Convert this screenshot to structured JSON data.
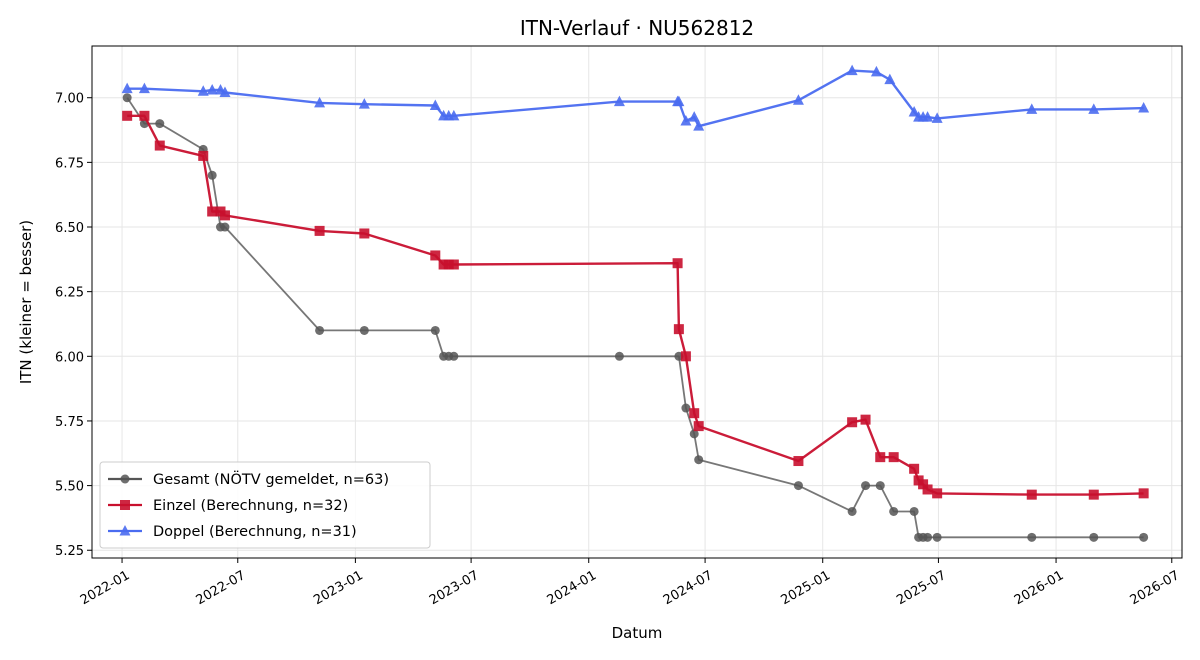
{
  "chart_data": {
    "type": "line",
    "title": "ITN-Verlauf · NU562812",
    "xlabel": "Datum",
    "ylabel": "ITN  (kleiner = besser)",
    "x_type": "date",
    "xlim": [
      "2021-11-15",
      "2026-07-17"
    ],
    "ylim": [
      5.22,
      7.2
    ],
    "y_ticks": [
      5.25,
      5.5,
      5.75,
      6.0,
      6.25,
      6.5,
      6.75,
      7.0
    ],
    "y_tick_labels": [
      "5.25",
      "5.50",
      "5.75",
      "6.00",
      "6.25",
      "6.50",
      "6.75",
      "7.00"
    ],
    "x_ticks": [
      "2022-01-01",
      "2022-07-01",
      "2023-01-01",
      "2023-07-01",
      "2024-01-01",
      "2024-07-01",
      "2025-01-01",
      "2025-07-01",
      "2026-01-01",
      "2026-07-01"
    ],
    "x_tick_labels": [
      "2022-01",
      "2022-07",
      "2023-01",
      "2023-07",
      "2024-01",
      "2024-07",
      "2025-01",
      "2025-07",
      "2026-01",
      "2026-07"
    ],
    "grid": true,
    "legend_position": "lower-left",
    "series": [
      {
        "name": "Gesamt (NÖTV gemeldet, n=63)",
        "color": "#555555",
        "marker": "circle",
        "points": [
          [
            "2022-01-09",
            7.0
          ],
          [
            "2022-02-05",
            6.9
          ],
          [
            "2022-03-01",
            6.9
          ],
          [
            "2022-05-08",
            6.8
          ],
          [
            "2022-05-22",
            6.7
          ],
          [
            "2022-06-04",
            6.5
          ],
          [
            "2022-06-11",
            6.5
          ],
          [
            "2022-11-06",
            6.1
          ],
          [
            "2023-01-15",
            6.1
          ],
          [
            "2023-05-06",
            6.1
          ],
          [
            "2023-05-19",
            6.0
          ],
          [
            "2023-05-27",
            6.0
          ],
          [
            "2023-06-04",
            6.0
          ],
          [
            "2024-02-18",
            6.0
          ],
          [
            "2024-05-21",
            6.0
          ],
          [
            "2024-06-01",
            5.8
          ],
          [
            "2024-06-14",
            5.7
          ],
          [
            "2024-06-21",
            5.6
          ],
          [
            "2024-11-24",
            5.5
          ],
          [
            "2025-02-16",
            5.4
          ],
          [
            "2025-03-09",
            5.5
          ],
          [
            "2025-04-01",
            5.5
          ],
          [
            "2025-04-22",
            5.4
          ],
          [
            "2025-05-24",
            5.4
          ],
          [
            "2025-05-31",
            5.3
          ],
          [
            "2025-06-07",
            5.3
          ],
          [
            "2025-06-14",
            5.3
          ],
          [
            "2025-06-29",
            5.3
          ],
          [
            "2025-11-24",
            5.3
          ],
          [
            "2026-03-01",
            5.3
          ],
          [
            "2026-05-18",
            5.3
          ]
        ]
      },
      {
        "name": "Einzel (Berechnung, n=32)",
        "color": "#C8102E",
        "marker": "square",
        "points": [
          [
            "2022-01-09",
            6.93
          ],
          [
            "2022-02-05",
            6.93
          ],
          [
            "2022-03-01",
            6.815
          ],
          [
            "2022-05-08",
            6.775
          ],
          [
            "2022-05-22",
            6.56
          ],
          [
            "2022-06-04",
            6.56
          ],
          [
            "2022-06-11",
            6.545
          ],
          [
            "2022-11-06",
            6.485
          ],
          [
            "2023-01-15",
            6.475
          ],
          [
            "2023-05-06",
            6.39
          ],
          [
            "2023-05-19",
            6.355
          ],
          [
            "2023-05-27",
            6.355
          ],
          [
            "2023-06-04",
            6.355
          ],
          [
            "2024-05-19",
            6.36
          ],
          [
            "2024-05-21",
            6.105
          ],
          [
            "2024-06-01",
            6.0
          ],
          [
            "2024-06-14",
            5.78
          ],
          [
            "2024-06-21",
            5.73
          ],
          [
            "2024-11-24",
            5.595
          ],
          [
            "2025-02-16",
            5.745
          ],
          [
            "2025-03-09",
            5.755
          ],
          [
            "2025-04-01",
            5.61
          ],
          [
            "2025-04-22",
            5.61
          ],
          [
            "2025-05-24",
            5.565
          ],
          [
            "2025-05-31",
            5.52
          ],
          [
            "2025-06-07",
            5.505
          ],
          [
            "2025-06-14",
            5.485
          ],
          [
            "2025-06-29",
            5.47
          ],
          [
            "2025-11-24",
            5.465
          ],
          [
            "2026-03-01",
            5.465
          ],
          [
            "2026-05-18",
            5.47
          ]
        ]
      },
      {
        "name": "Doppel (Berechnung, n=31)",
        "color": "#4A6CF0",
        "marker": "triangle",
        "points": [
          [
            "2022-01-09",
            7.035
          ],
          [
            "2022-02-05",
            7.035
          ],
          [
            "2022-05-08",
            7.025
          ],
          [
            "2022-05-22",
            7.03
          ],
          [
            "2022-06-04",
            7.03
          ],
          [
            "2022-06-11",
            7.02
          ],
          [
            "2022-11-06",
            6.98
          ],
          [
            "2023-01-15",
            6.975
          ],
          [
            "2023-05-06",
            6.97
          ],
          [
            "2023-05-19",
            6.93
          ],
          [
            "2023-05-27",
            6.93
          ],
          [
            "2023-06-04",
            6.93
          ],
          [
            "2024-02-18",
            6.985
          ],
          [
            "2024-05-19",
            6.985
          ],
          [
            "2024-05-21",
            6.985
          ],
          [
            "2024-06-01",
            6.91
          ],
          [
            "2024-06-14",
            6.925
          ],
          [
            "2024-06-21",
            6.89
          ],
          [
            "2024-11-24",
            6.99
          ],
          [
            "2025-02-16",
            7.105
          ],
          [
            "2025-03-26",
            7.1
          ],
          [
            "2025-04-16",
            7.07
          ],
          [
            "2025-05-24",
            6.945
          ],
          [
            "2025-05-31",
            6.925
          ],
          [
            "2025-06-07",
            6.925
          ],
          [
            "2025-06-14",
            6.925
          ],
          [
            "2025-06-29",
            6.92
          ],
          [
            "2025-11-24",
            6.955
          ],
          [
            "2026-03-01",
            6.955
          ],
          [
            "2026-05-18",
            6.96
          ]
        ]
      }
    ]
  }
}
